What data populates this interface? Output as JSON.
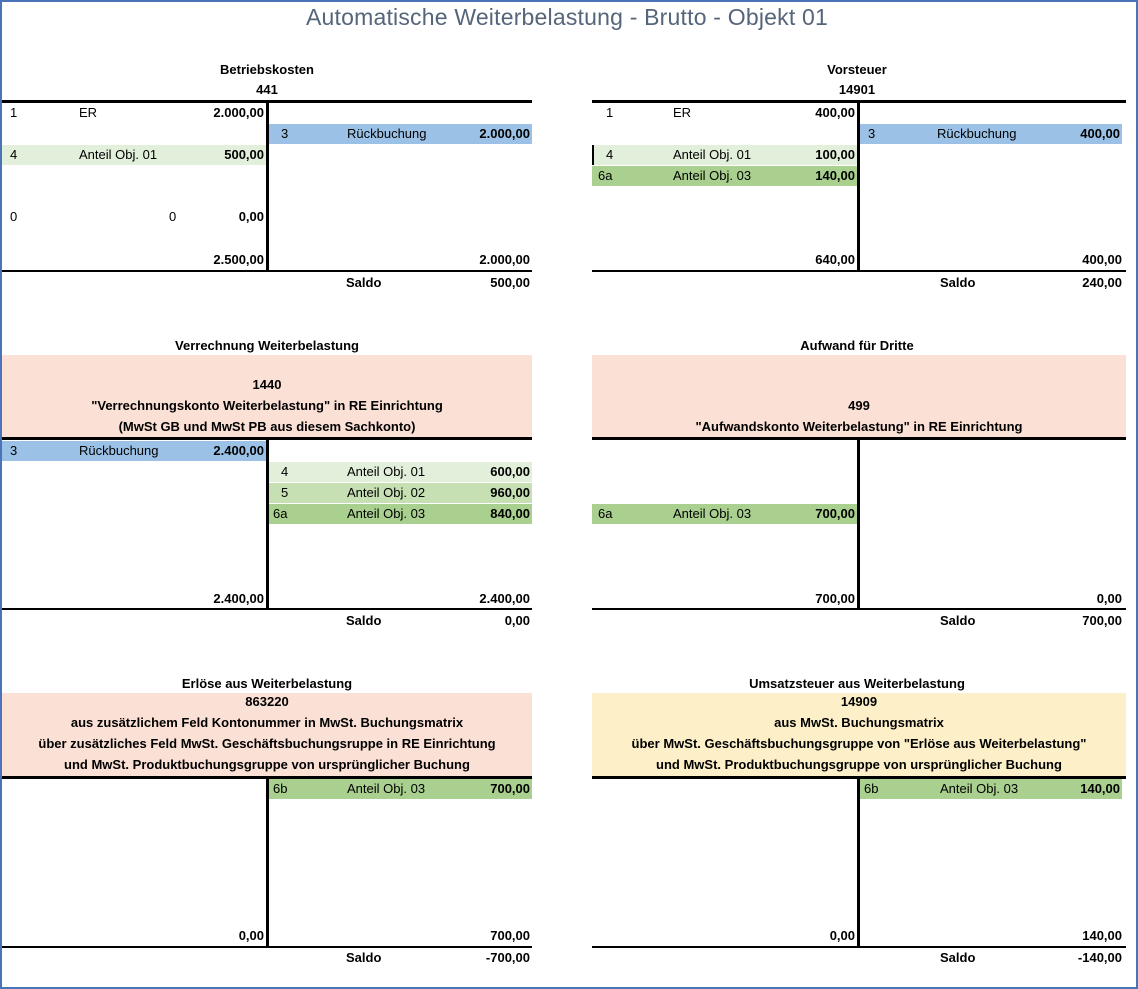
{
  "title": "Automatische Weiterbelastung - Brutto - Objekt 01",
  "accounts": {
    "betriebskosten": {
      "name": "Betriebskosten",
      "number": "441",
      "debit": [
        {
          "nr": "1",
          "text": "ER",
          "amount": "2.000,00"
        },
        {
          "nr": "4",
          "text": "Anteil Obj. 01",
          "amount": "500,00"
        },
        {
          "nr": "0",
          "text": "0",
          "amount": "0,00"
        }
      ],
      "credit": [
        {
          "nr": "3",
          "text": "Rückbuchung",
          "amount": "2.000,00"
        }
      ],
      "debit_total": "2.500,00",
      "credit_total": "2.000,00",
      "saldo_label": "Saldo",
      "saldo": "500,00"
    },
    "vorsteuer": {
      "name": "Vorsteuer",
      "number": "14901",
      "debit": [
        {
          "nr": "1",
          "text": "ER",
          "amount": "400,00"
        },
        {
          "nr": "4",
          "text": "Anteil Obj. 01",
          "amount": "100,00"
        },
        {
          "nr": "6a",
          "text": "Anteil Obj. 03",
          "amount": "140,00"
        }
      ],
      "credit": [
        {
          "nr": "3",
          "text": "Rückbuchung",
          "amount": "400,00"
        }
      ],
      "debit_total": "640,00",
      "credit_total": "400,00",
      "saldo_label": "Saldo",
      "saldo": "240,00"
    },
    "verrechnung": {
      "name": "Verrechnung Weiterbelastung",
      "box": [
        "1440",
        "\"Verrechnungskonto Weiterbelastung\" in RE Einrichtung",
        "(MwSt GB und MwSt PB aus diesem Sachkonto)"
      ],
      "debit": [
        {
          "nr": "3",
          "text": "Rückbuchung",
          "amount": "2.400,00"
        }
      ],
      "credit": [
        {
          "nr": "4",
          "text": "Anteil Obj. 01",
          "amount": "600,00"
        },
        {
          "nr": "5",
          "text": "Anteil Obj. 02",
          "amount": "960,00"
        },
        {
          "nr": "6a",
          "text": "Anteil Obj. 03",
          "amount": "840,00"
        }
      ],
      "debit_total": "2.400,00",
      "credit_total": "2.400,00",
      "saldo_label": "Saldo",
      "saldo": "0,00"
    },
    "aufwand": {
      "name": "Aufwand für Dritte",
      "box": [
        "499",
        "\"Aufwandskonto Weiterbelastung\" in RE Einrichtung"
      ],
      "debit": [
        {
          "nr": "6a",
          "text": "Anteil Obj. 03",
          "amount": "700,00"
        }
      ],
      "debit_total": "700,00",
      "credit_total": "0,00",
      "saldo_label": "Saldo",
      "saldo": "700,00"
    },
    "erloese": {
      "name": "Erlöse aus Weiterbelastung",
      "box": [
        "863220",
        "aus zusätzlichem Feld Kontonummer in MwSt. Buchungsmatrix",
        "über zusätzliches Feld MwSt. Geschäftsbuchungsruppe in RE Einrichtung",
        "und MwSt. Produktbuchungsgruppe von ursprünglicher Buchung"
      ],
      "credit": [
        {
          "nr": "6b",
          "text": "Anteil Obj. 03",
          "amount": "700,00"
        }
      ],
      "debit_total": "0,00",
      "credit_total": "700,00",
      "saldo_label": "Saldo",
      "saldo": "-700,00"
    },
    "umsatzsteuer": {
      "name": "Umsatzsteuer aus Weiterbelastung",
      "box": [
        "14909",
        "aus MwSt. Buchungsmatrix",
        "über MwSt. Geschäftsbuchungsgruppe von \"Erlöse aus Weiterbelastung\"",
        "und MwSt. Produktbuchungsgruppe von ursprünglicher Buchung"
      ],
      "credit": [
        {
          "nr": "6b",
          "text": "Anteil Obj. 03",
          "amount": "140,00"
        }
      ],
      "debit_total": "0,00",
      "credit_total": "140,00",
      "saldo_label": "Saldo",
      "saldo": "-140,00"
    }
  },
  "colors": {
    "light_green": "#e2efda",
    "mid_green": "#c6e0b4",
    "dark_green": "#a9d08e",
    "blue": "#9bc2e6",
    "pink": "#fbe0d6",
    "yellow": "#fdf0c8",
    "frame": "#4a73b8"
  }
}
